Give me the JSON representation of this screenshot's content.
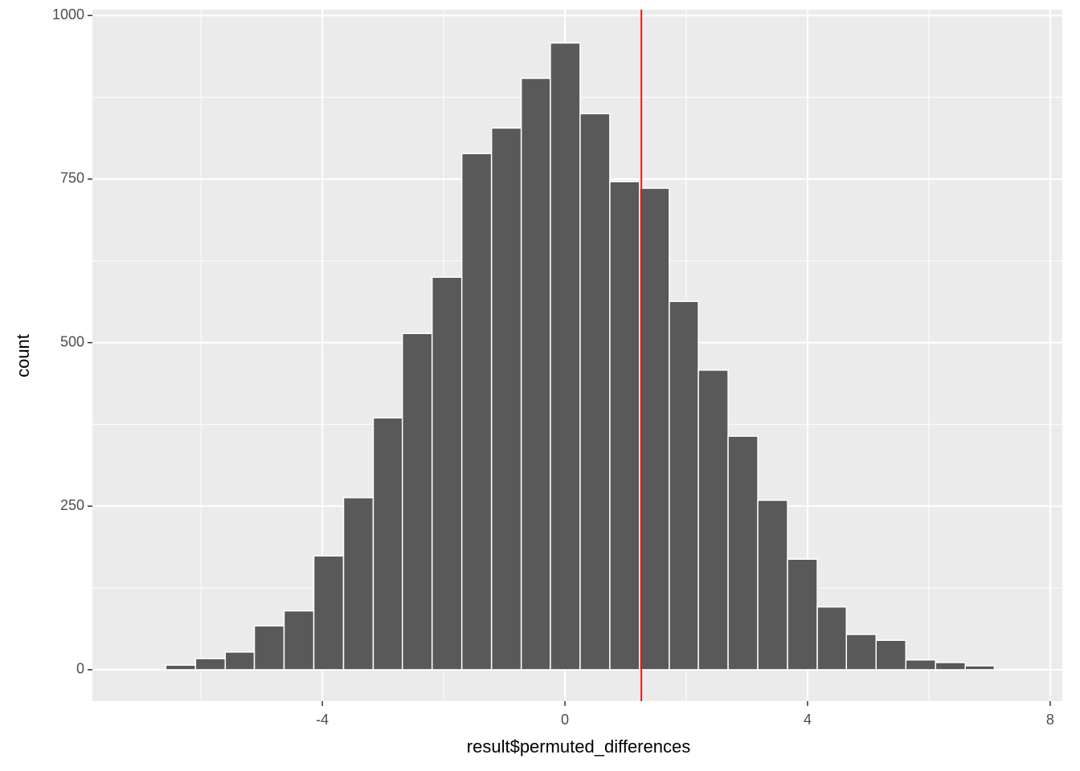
{
  "chart_data": {
    "type": "histogram",
    "xlabel": "result$permuted_differences",
    "ylabel": "count",
    "bins": [
      -6.58,
      -6.09,
      -5.6,
      -5.12,
      -4.63,
      -4.14,
      -3.65,
      -3.16,
      -2.68,
      -2.19,
      -1.7,
      -1.21,
      -0.72,
      -0.24,
      0.25,
      0.74,
      1.23,
      1.72,
      2.2,
      2.69,
      3.18,
      3.67,
      4.16,
      4.64,
      5.13,
      5.62,
      6.11,
      6.6,
      7.08
    ],
    "values": [
      7,
      17,
      27,
      67,
      90,
      174,
      263,
      385,
      514,
      600,
      789,
      828,
      904,
      958,
      850,
      746,
      736,
      563,
      458,
      357,
      259,
      169,
      96,
      54,
      45,
      15,
      11,
      6
    ],
    "color": "#595959",
    "vline": {
      "x": 1.26,
      "color": "#e41a1c"
    },
    "xlim": [
      -7.79,
      8.2
    ],
    "xticks": [
      -4,
      0,
      4,
      8
    ],
    "ylim": [
      -48,
      1009
    ],
    "yticks": [
      0,
      250,
      500,
      750,
      1000
    ],
    "grid": true
  }
}
